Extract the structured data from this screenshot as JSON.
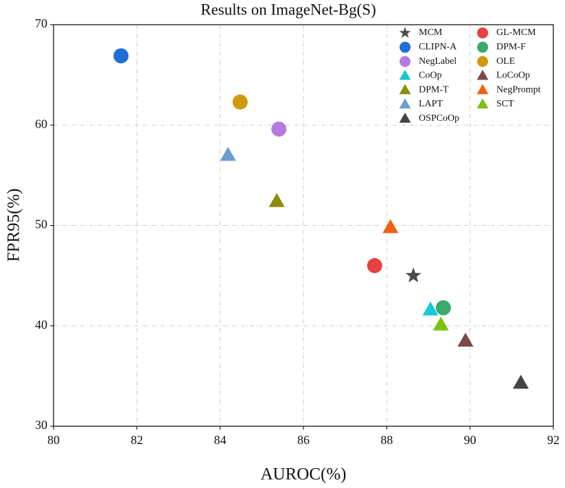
{
  "chart_data": {
    "type": "scatter",
    "title": "Results on ImageNet-Bg(S)",
    "x_label": "AUROC(%)",
    "y_label": "FPR95(%)",
    "xlim": [
      80,
      92
    ],
    "xticks": [
      80,
      82,
      84,
      86,
      88,
      90,
      92
    ],
    "ylim": [
      30,
      70
    ],
    "yticks": [
      30,
      40,
      50,
      60,
      70
    ],
    "grid": true,
    "legend": "upper right",
    "series": [
      {
        "name": "MCM",
        "marker": "star",
        "color": "#4d4d4d",
        "x": [
          88.64
        ],
        "values": [
          45.0
        ]
      },
      {
        "name": "CLIPN-A",
        "marker": "circle",
        "color": "#1f6fd6",
        "x": [
          81.62
        ],
        "values": [
          66.9
        ]
      },
      {
        "name": "NegLabel",
        "marker": "circle",
        "color": "#b57be0",
        "x": [
          85.41
        ],
        "values": [
          59.6
        ]
      },
      {
        "name": "CoOp",
        "marker": "triangle",
        "color": "#17c9d6",
        "x": [
          89.05
        ],
        "values": [
          41.6
        ]
      },
      {
        "name": "DPM-T",
        "marker": "triangle",
        "color": "#8c8c0a",
        "x": [
          85.36
        ],
        "values": [
          52.4
        ]
      },
      {
        "name": "LAPT",
        "marker": "triangle",
        "color": "#6b9bd1",
        "x": [
          84.19
        ],
        "values": [
          57.0
        ]
      },
      {
        "name": "OSPCoOp",
        "marker": "triangle",
        "color": "#444444",
        "x": [
          91.22
        ],
        "values": [
          34.3
        ]
      },
      {
        "name": "GL-MCM",
        "marker": "circle",
        "color": "#e84040",
        "x": [
          87.71
        ],
        "values": [
          46.0
        ]
      },
      {
        "name": "DPM-F",
        "marker": "circle",
        "color": "#3aaa6a",
        "x": [
          89.36
        ],
        "values": [
          41.8
        ]
      },
      {
        "name": "OLE",
        "marker": "circle",
        "color": "#d09a10",
        "x": [
          84.48
        ],
        "values": [
          62.3
        ]
      },
      {
        "name": "LoCoOp",
        "marker": "triangle",
        "color": "#7a4a4a",
        "x": [
          89.89
        ],
        "values": [
          38.5
        ]
      },
      {
        "name": "NegPrompt",
        "marker": "triangle",
        "color": "#f06010",
        "x": [
          88.09
        ],
        "values": [
          49.8
        ]
      },
      {
        "name": "SCT",
        "marker": "triangle",
        "color": "#7cc010",
        "x": [
          89.3
        ],
        "values": [
          40.1
        ]
      }
    ]
  }
}
